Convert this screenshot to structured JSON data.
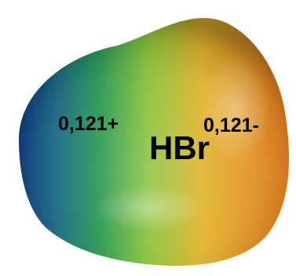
{
  "molecule": {
    "formula": "HBr",
    "charges": {
      "left": "0,121+",
      "right": "0,121-"
    }
  },
  "surface": {
    "type": "electrostatic-potential-surface",
    "color_scale": {
      "positive_end": "#0d3f82",
      "mid_low": "#2a9a52",
      "mid": "#8cc33c",
      "mid_high": "#e2b42c",
      "negative_end": "#e67b1f"
    }
  }
}
